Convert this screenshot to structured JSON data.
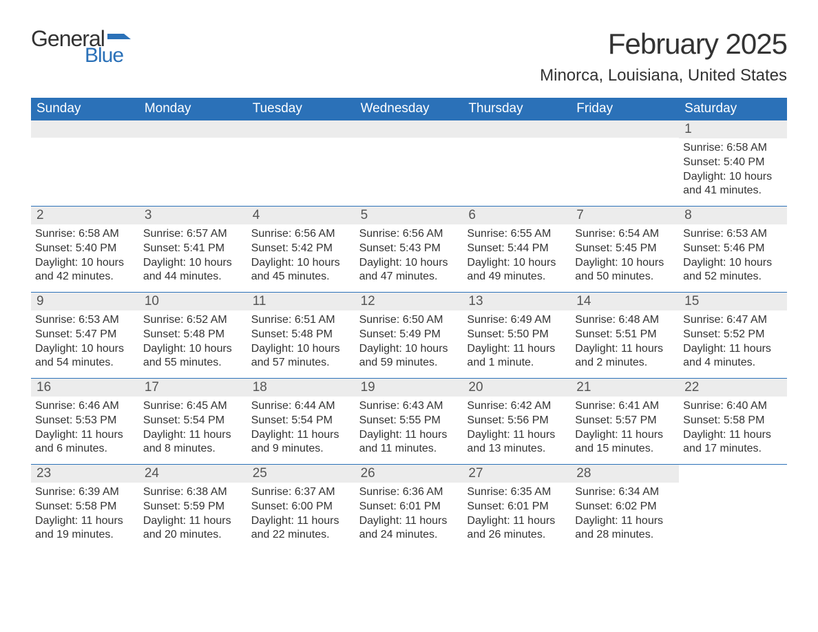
{
  "brand": {
    "general": "General",
    "blue": "Blue",
    "flag_color": "#2b71b8"
  },
  "header": {
    "month_title": "February 2025",
    "location": "Minorca, Louisiana, United States"
  },
  "calendar": {
    "type": "table",
    "header_bg": "#2b71b8",
    "header_text_color": "#ffffff",
    "row_separator_color": "#2b71b8",
    "daynum_bg": "#ececec",
    "background_color": "#ffffff",
    "text_color": "#333333",
    "weekday_fontsize": 19,
    "daynum_fontsize": 19,
    "body_fontsize": 16,
    "weekdays": [
      "Sunday",
      "Monday",
      "Tuesday",
      "Wednesday",
      "Thursday",
      "Friday",
      "Saturday"
    ],
    "weeks": [
      [
        null,
        null,
        null,
        null,
        null,
        null,
        {
          "n": "1",
          "sunrise": "Sunrise: 6:58 AM",
          "sunset": "Sunset: 5:40 PM",
          "daylight": "Daylight: 10 hours and 41 minutes."
        }
      ],
      [
        {
          "n": "2",
          "sunrise": "Sunrise: 6:58 AM",
          "sunset": "Sunset: 5:40 PM",
          "daylight": "Daylight: 10 hours and 42 minutes."
        },
        {
          "n": "3",
          "sunrise": "Sunrise: 6:57 AM",
          "sunset": "Sunset: 5:41 PM",
          "daylight": "Daylight: 10 hours and 44 minutes."
        },
        {
          "n": "4",
          "sunrise": "Sunrise: 6:56 AM",
          "sunset": "Sunset: 5:42 PM",
          "daylight": "Daylight: 10 hours and 45 minutes."
        },
        {
          "n": "5",
          "sunrise": "Sunrise: 6:56 AM",
          "sunset": "Sunset: 5:43 PM",
          "daylight": "Daylight: 10 hours and 47 minutes."
        },
        {
          "n": "6",
          "sunrise": "Sunrise: 6:55 AM",
          "sunset": "Sunset: 5:44 PM",
          "daylight": "Daylight: 10 hours and 49 minutes."
        },
        {
          "n": "7",
          "sunrise": "Sunrise: 6:54 AM",
          "sunset": "Sunset: 5:45 PM",
          "daylight": "Daylight: 10 hours and 50 minutes."
        },
        {
          "n": "8",
          "sunrise": "Sunrise: 6:53 AM",
          "sunset": "Sunset: 5:46 PM",
          "daylight": "Daylight: 10 hours and 52 minutes."
        }
      ],
      [
        {
          "n": "9",
          "sunrise": "Sunrise: 6:53 AM",
          "sunset": "Sunset: 5:47 PM",
          "daylight": "Daylight: 10 hours and 54 minutes."
        },
        {
          "n": "10",
          "sunrise": "Sunrise: 6:52 AM",
          "sunset": "Sunset: 5:48 PM",
          "daylight": "Daylight: 10 hours and 55 minutes."
        },
        {
          "n": "11",
          "sunrise": "Sunrise: 6:51 AM",
          "sunset": "Sunset: 5:48 PM",
          "daylight": "Daylight: 10 hours and 57 minutes."
        },
        {
          "n": "12",
          "sunrise": "Sunrise: 6:50 AM",
          "sunset": "Sunset: 5:49 PM",
          "daylight": "Daylight: 10 hours and 59 minutes."
        },
        {
          "n": "13",
          "sunrise": "Sunrise: 6:49 AM",
          "sunset": "Sunset: 5:50 PM",
          "daylight": "Daylight: 11 hours and 1 minute."
        },
        {
          "n": "14",
          "sunrise": "Sunrise: 6:48 AM",
          "sunset": "Sunset: 5:51 PM",
          "daylight": "Daylight: 11 hours and 2 minutes."
        },
        {
          "n": "15",
          "sunrise": "Sunrise: 6:47 AM",
          "sunset": "Sunset: 5:52 PM",
          "daylight": "Daylight: 11 hours and 4 minutes."
        }
      ],
      [
        {
          "n": "16",
          "sunrise": "Sunrise: 6:46 AM",
          "sunset": "Sunset: 5:53 PM",
          "daylight": "Daylight: 11 hours and 6 minutes."
        },
        {
          "n": "17",
          "sunrise": "Sunrise: 6:45 AM",
          "sunset": "Sunset: 5:54 PM",
          "daylight": "Daylight: 11 hours and 8 minutes."
        },
        {
          "n": "18",
          "sunrise": "Sunrise: 6:44 AM",
          "sunset": "Sunset: 5:54 PM",
          "daylight": "Daylight: 11 hours and 9 minutes."
        },
        {
          "n": "19",
          "sunrise": "Sunrise: 6:43 AM",
          "sunset": "Sunset: 5:55 PM",
          "daylight": "Daylight: 11 hours and 11 minutes."
        },
        {
          "n": "20",
          "sunrise": "Sunrise: 6:42 AM",
          "sunset": "Sunset: 5:56 PM",
          "daylight": "Daylight: 11 hours and 13 minutes."
        },
        {
          "n": "21",
          "sunrise": "Sunrise: 6:41 AM",
          "sunset": "Sunset: 5:57 PM",
          "daylight": "Daylight: 11 hours and 15 minutes."
        },
        {
          "n": "22",
          "sunrise": "Sunrise: 6:40 AM",
          "sunset": "Sunset: 5:58 PM",
          "daylight": "Daylight: 11 hours and 17 minutes."
        }
      ],
      [
        {
          "n": "23",
          "sunrise": "Sunrise: 6:39 AM",
          "sunset": "Sunset: 5:58 PM",
          "daylight": "Daylight: 11 hours and 19 minutes."
        },
        {
          "n": "24",
          "sunrise": "Sunrise: 6:38 AM",
          "sunset": "Sunset: 5:59 PM",
          "daylight": "Daylight: 11 hours and 20 minutes."
        },
        {
          "n": "25",
          "sunrise": "Sunrise: 6:37 AM",
          "sunset": "Sunset: 6:00 PM",
          "daylight": "Daylight: 11 hours and 22 minutes."
        },
        {
          "n": "26",
          "sunrise": "Sunrise: 6:36 AM",
          "sunset": "Sunset: 6:01 PM",
          "daylight": "Daylight: 11 hours and 24 minutes."
        },
        {
          "n": "27",
          "sunrise": "Sunrise: 6:35 AM",
          "sunset": "Sunset: 6:01 PM",
          "daylight": "Daylight: 11 hours and 26 minutes."
        },
        {
          "n": "28",
          "sunrise": "Sunrise: 6:34 AM",
          "sunset": "Sunset: 6:02 PM",
          "daylight": "Daylight: 11 hours and 28 minutes."
        },
        null
      ]
    ]
  }
}
